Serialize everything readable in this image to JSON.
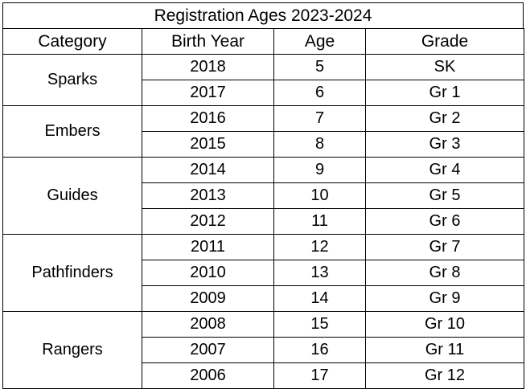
{
  "title": "Registration Ages 2023-2024",
  "headers": [
    "Category",
    "Birth Year",
    "Age",
    "Grade"
  ],
  "groups": [
    {
      "category": "Sparks",
      "rows": [
        {
          "year": "2018",
          "age": "5",
          "grade": "SK"
        },
        {
          "year": "2017",
          "age": "6",
          "grade": "Gr 1"
        }
      ]
    },
    {
      "category": "Embers",
      "rows": [
        {
          "year": "2016",
          "age": "7",
          "grade": "Gr 2"
        },
        {
          "year": "2015",
          "age": "8",
          "grade": "Gr 3"
        }
      ]
    },
    {
      "category": "Guides",
      "rows": [
        {
          "year": "2014",
          "age": "9",
          "grade": "Gr 4"
        },
        {
          "year": "2013",
          "age": "10",
          "grade": "Gr 5"
        },
        {
          "year": "2012",
          "age": "11",
          "grade": "Gr 6"
        }
      ]
    },
    {
      "category": "Pathfinders",
      "rows": [
        {
          "year": "2011",
          "age": "12",
          "grade": "Gr 7"
        },
        {
          "year": "2010",
          "age": "13",
          "grade": "Gr 8"
        },
        {
          "year": "2009",
          "age": "14",
          "grade": "Gr 9"
        }
      ]
    },
    {
      "category": "Rangers",
      "rows": [
        {
          "year": "2008",
          "age": "15",
          "grade": "Gr 10"
        },
        {
          "year": "2007",
          "age": "16",
          "grade": "Gr 11"
        },
        {
          "year": "2006",
          "age": "17",
          "grade": "Gr 12"
        }
      ]
    }
  ]
}
